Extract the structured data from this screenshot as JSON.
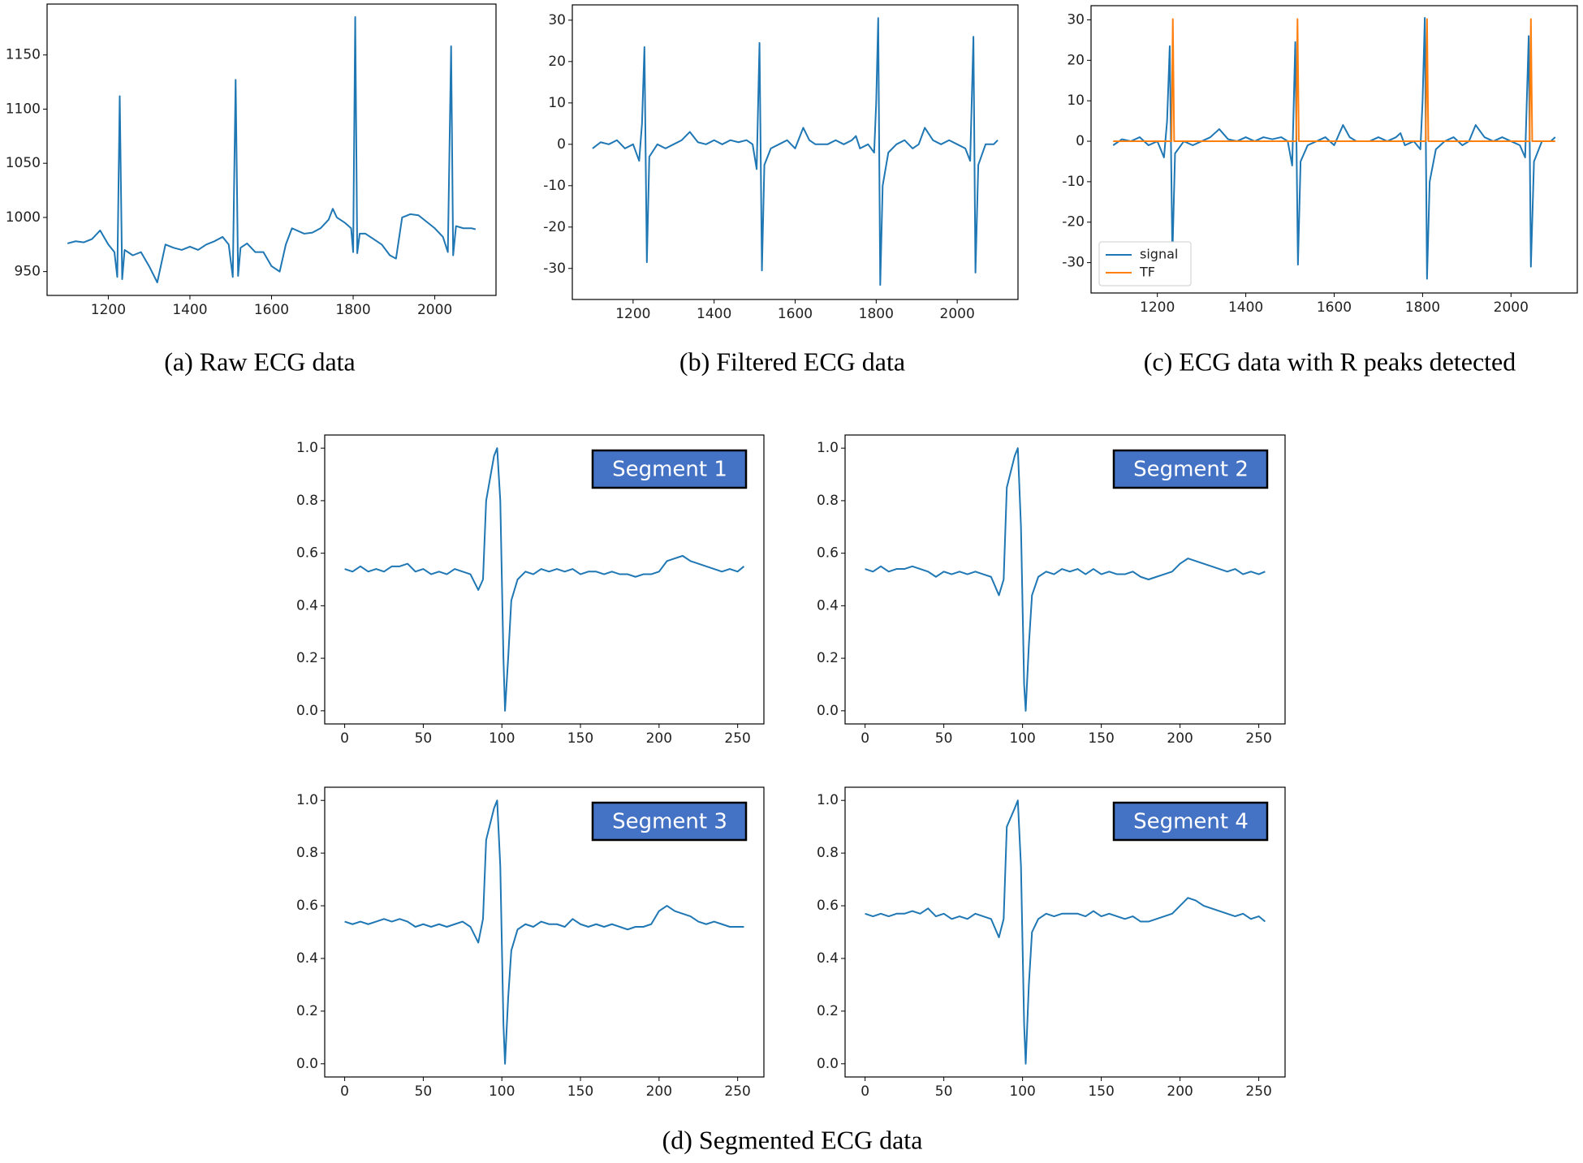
{
  "chart_data": [
    {
      "type": "line",
      "caption": "(a) Raw ECG data",
      "x": [
        1100,
        1120,
        1140,
        1160,
        1180,
        1200,
        1215,
        1222,
        1228,
        1234,
        1240,
        1260,
        1280,
        1300,
        1320,
        1340,
        1360,
        1380,
        1400,
        1420,
        1440,
        1460,
        1480,
        1495,
        1505,
        1512,
        1518,
        1524,
        1540,
        1560,
        1580,
        1600,
        1620,
        1635,
        1650,
        1680,
        1700,
        1720,
        1740,
        1750,
        1760,
        1780,
        1795,
        1800,
        1805,
        1810,
        1816,
        1830,
        1850,
        1870,
        1890,
        1905,
        1920,
        1940,
        1960,
        1980,
        2000,
        2020,
        2032,
        2040,
        2045,
        2052,
        2070,
        2090,
        2100
      ],
      "series": [
        {
          "color": "#1f77b4",
          "values": [
            976,
            978,
            977,
            980,
            988,
            975,
            968,
            945,
            1112,
            943,
            970,
            965,
            968,
            955,
            940,
            975,
            972,
            970,
            973,
            970,
            975,
            978,
            982,
            975,
            945,
            1127,
            946,
            972,
            976,
            968,
            968,
            955,
            950,
            975,
            990,
            985,
            986,
            990,
            998,
            1008,
            1000,
            995,
            990,
            968,
            1185,
            967,
            985,
            985,
            980,
            975,
            965,
            962,
            1000,
            1003,
            1002,
            996,
            990,
            982,
            968,
            1158,
            965,
            992,
            990,
            990,
            989
          ]
        }
      ],
      "xlim": [
        1050,
        2150
      ],
      "ylim": [
        928,
        1197
      ],
      "xticks": [
        1200,
        1400,
        1600,
        1800,
        2000
      ],
      "yticks": [
        950,
        1000,
        1050,
        1100,
        1150
      ]
    },
    {
      "type": "line",
      "caption": "(b) Filtered ECG data",
      "x": [
        1100,
        1120,
        1140,
        1160,
        1180,
        1200,
        1215,
        1222,
        1228,
        1234,
        1240,
        1260,
        1280,
        1300,
        1320,
        1340,
        1360,
        1380,
        1400,
        1420,
        1440,
        1460,
        1480,
        1495,
        1505,
        1512,
        1518,
        1524,
        1540,
        1560,
        1580,
        1600,
        1620,
        1635,
        1650,
        1680,
        1700,
        1720,
        1740,
        1750,
        1760,
        1780,
        1795,
        1800,
        1805,
        1810,
        1816,
        1830,
        1850,
        1870,
        1890,
        1905,
        1920,
        1940,
        1960,
        1980,
        2000,
        2020,
        2032,
        2040,
        2045,
        2052,
        2070,
        2090,
        2100
      ],
      "series": [
        {
          "color": "#1f77b4",
          "values": [
            -1,
            0.5,
            0,
            1,
            -1,
            0,
            -4,
            5,
            23.5,
            -28.5,
            -3,
            0,
            -1,
            0,
            1,
            3,
            0.5,
            0,
            1,
            0,
            1,
            0.5,
            1,
            0,
            -6,
            24.5,
            -30.5,
            -5,
            -1,
            0,
            1,
            -1,
            4,
            1,
            0,
            0,
            1,
            0,
            1,
            2,
            -1,
            0,
            -2,
            10,
            30.5,
            -34,
            -10,
            -2,
            0,
            1,
            -1,
            0,
            4,
            1,
            0,
            1,
            0,
            -1,
            -4,
            26,
            -31,
            -5,
            0,
            0,
            1
          ]
        }
      ],
      "xlim": [
        1050,
        2150
      ],
      "ylim": [
        -37.5,
        33.7
      ],
      "xticks": [
        1200,
        1400,
        1600,
        1800,
        2000
      ],
      "yticks": [
        -30,
        -20,
        -10,
        0,
        10,
        20,
        30
      ]
    },
    {
      "type": "line",
      "caption": "(c) ECG data with R peaks detected",
      "legend": "lower left",
      "series": [
        {
          "name": "signal",
          "color": "#1f77b4",
          "x": [
            1100,
            1120,
            1140,
            1160,
            1180,
            1200,
            1215,
            1222,
            1228,
            1234,
            1240,
            1260,
            1280,
            1300,
            1320,
            1340,
            1360,
            1380,
            1400,
            1420,
            1440,
            1460,
            1480,
            1495,
            1505,
            1512,
            1518,
            1524,
            1540,
            1560,
            1580,
            1600,
            1620,
            1635,
            1650,
            1680,
            1700,
            1720,
            1740,
            1750,
            1760,
            1780,
            1795,
            1800,
            1805,
            1810,
            1816,
            1830,
            1850,
            1870,
            1890,
            1905,
            1920,
            1940,
            1960,
            1980,
            2000,
            2020,
            2032,
            2040,
            2045,
            2052,
            2070,
            2090,
            2100
          ],
          "values": [
            -1,
            0.5,
            0,
            1,
            -1,
            0,
            -4,
            5,
            23.5,
            -28.5,
            -3,
            0,
            -1,
            0,
            1,
            3,
            0.5,
            0,
            1,
            0,
            1,
            0.5,
            1,
            0,
            -6,
            24.5,
            -30.5,
            -5,
            -1,
            0,
            1,
            -1,
            4,
            1,
            0,
            0,
            1,
            0,
            1,
            2,
            -1,
            0,
            -2,
            10,
            30.5,
            -34,
            -10,
            -2,
            0,
            1,
            -1,
            0,
            4,
            1,
            0,
            1,
            0,
            -1,
            -4,
            26,
            -31,
            -5,
            0,
            0,
            1
          ]
        },
        {
          "name": "TF",
          "color": "#ff7f0e",
          "x": [
            1100,
            1232,
            1235,
            1238,
            1514,
            1517,
            1520,
            1807,
            1810,
            1813,
            2042,
            2045,
            2048,
            2100
          ],
          "values": [
            0,
            0,
            30.2,
            0,
            0,
            30.2,
            0,
            0,
            30.2,
            0,
            0,
            30.2,
            0,
            0
          ]
        }
      ],
      "xlim": [
        1050,
        2150
      ],
      "ylim": [
        -37.5,
        33.5
      ],
      "xticks": [
        1200,
        1400,
        1600,
        1800,
        2000
      ],
      "yticks": [
        -30,
        -20,
        -10,
        0,
        10,
        20,
        30
      ]
    },
    {
      "type": "line",
      "annotation": "Segment 1",
      "x": [
        0,
        5,
        10,
        15,
        20,
        25,
        30,
        35,
        40,
        45,
        50,
        55,
        60,
        65,
        70,
        75,
        80,
        85,
        88,
        90,
        95,
        97,
        99,
        101,
        102,
        104,
        106,
        110,
        115,
        120,
        125,
        130,
        135,
        140,
        145,
        150,
        155,
        160,
        165,
        170,
        175,
        180,
        185,
        190,
        195,
        200,
        205,
        210,
        215,
        220,
        225,
        230,
        235,
        240,
        245,
        250,
        254
      ],
      "series": [
        {
          "color": "#1f77b4",
          "values": [
            0.54,
            0.53,
            0.55,
            0.53,
            0.54,
            0.53,
            0.55,
            0.55,
            0.56,
            0.53,
            0.54,
            0.52,
            0.53,
            0.52,
            0.54,
            0.53,
            0.52,
            0.46,
            0.5,
            0.8,
            0.97,
            1.0,
            0.8,
            0.2,
            0.0,
            0.2,
            0.42,
            0.5,
            0.53,
            0.52,
            0.54,
            0.53,
            0.54,
            0.53,
            0.54,
            0.52,
            0.53,
            0.53,
            0.52,
            0.53,
            0.52,
            0.52,
            0.51,
            0.52,
            0.52,
            0.53,
            0.57,
            0.58,
            0.59,
            0.57,
            0.56,
            0.55,
            0.54,
            0.53,
            0.54,
            0.53,
            0.55
          ]
        }
      ],
      "xlim": [
        -12.7,
        266.7
      ],
      "ylim": [
        -0.05,
        1.05
      ],
      "xticks": [
        0,
        50,
        100,
        150,
        200,
        250
      ],
      "yticks": [
        {
          "value": 0,
          "label": "0.0"
        },
        0.2,
        0.4,
        0.6,
        0.8,
        {
          "value": 1,
          "label": "1.0"
        }
      ]
    },
    {
      "type": "line",
      "annotation": "Segment 2",
      "x": [
        0,
        5,
        10,
        15,
        20,
        25,
        30,
        35,
        40,
        45,
        50,
        55,
        60,
        65,
        70,
        75,
        80,
        85,
        88,
        90,
        95,
        97,
        99,
        101,
        102,
        104,
        106,
        110,
        115,
        120,
        125,
        130,
        135,
        140,
        145,
        150,
        155,
        160,
        165,
        170,
        175,
        180,
        185,
        190,
        195,
        200,
        205,
        210,
        215,
        220,
        225,
        230,
        235,
        240,
        245,
        250,
        254
      ],
      "series": [
        {
          "color": "#1f77b4",
          "values": [
            0.54,
            0.53,
            0.55,
            0.53,
            0.54,
            0.54,
            0.55,
            0.54,
            0.53,
            0.51,
            0.53,
            0.52,
            0.53,
            0.52,
            0.53,
            0.52,
            0.51,
            0.44,
            0.5,
            0.85,
            0.97,
            1.0,
            0.7,
            0.1,
            0.0,
            0.25,
            0.44,
            0.51,
            0.53,
            0.52,
            0.54,
            0.53,
            0.54,
            0.52,
            0.54,
            0.52,
            0.53,
            0.52,
            0.52,
            0.53,
            0.51,
            0.5,
            0.51,
            0.52,
            0.53,
            0.56,
            0.58,
            0.57,
            0.56,
            0.55,
            0.54,
            0.53,
            0.54,
            0.52,
            0.53,
            0.52,
            0.53
          ]
        }
      ],
      "xlim": [
        -12.7,
        266.7
      ],
      "ylim": [
        -0.05,
        1.05
      ],
      "xticks": [
        0,
        50,
        100,
        150,
        200,
        250
      ],
      "yticks": [
        {
          "value": 0,
          "label": "0.0"
        },
        0.2,
        0.4,
        0.6,
        0.8,
        {
          "value": 1,
          "label": "1.0"
        }
      ]
    },
    {
      "type": "line",
      "annotation": "Segment 3",
      "x": [
        0,
        5,
        10,
        15,
        20,
        25,
        30,
        35,
        40,
        45,
        50,
        55,
        60,
        65,
        70,
        75,
        80,
        85,
        88,
        90,
        95,
        97,
        99,
        101,
        102,
        104,
        106,
        110,
        115,
        120,
        125,
        130,
        135,
        140,
        145,
        150,
        155,
        160,
        165,
        170,
        175,
        180,
        185,
        190,
        195,
        200,
        205,
        210,
        215,
        220,
        225,
        230,
        235,
        240,
        245,
        250,
        254
      ],
      "series": [
        {
          "color": "#1f77b4",
          "values": [
            0.54,
            0.53,
            0.54,
            0.53,
            0.54,
            0.55,
            0.54,
            0.55,
            0.54,
            0.52,
            0.53,
            0.52,
            0.53,
            0.52,
            0.53,
            0.54,
            0.52,
            0.46,
            0.55,
            0.85,
            0.97,
            1.0,
            0.75,
            0.15,
            0.0,
            0.25,
            0.43,
            0.51,
            0.53,
            0.52,
            0.54,
            0.53,
            0.53,
            0.52,
            0.55,
            0.53,
            0.52,
            0.53,
            0.52,
            0.53,
            0.52,
            0.51,
            0.52,
            0.52,
            0.53,
            0.58,
            0.6,
            0.58,
            0.57,
            0.56,
            0.54,
            0.53,
            0.54,
            0.53,
            0.52,
            0.52,
            0.52
          ]
        }
      ],
      "xlim": [
        -12.7,
        266.7
      ],
      "ylim": [
        -0.05,
        1.05
      ],
      "xticks": [
        0,
        50,
        100,
        150,
        200,
        250
      ],
      "yticks": [
        {
          "value": 0,
          "label": "0.0"
        },
        0.2,
        0.4,
        0.6,
        0.8,
        {
          "value": 1,
          "label": "1.0"
        }
      ]
    },
    {
      "type": "line",
      "annotation": "Segment 4",
      "x": [
        0,
        5,
        10,
        15,
        20,
        25,
        30,
        35,
        40,
        45,
        50,
        55,
        60,
        65,
        70,
        75,
        80,
        85,
        88,
        90,
        95,
        97,
        99,
        101,
        102,
        104,
        106,
        110,
        115,
        120,
        125,
        130,
        135,
        140,
        145,
        150,
        155,
        160,
        165,
        170,
        175,
        180,
        185,
        190,
        195,
        200,
        205,
        210,
        215,
        220,
        225,
        230,
        235,
        240,
        245,
        250,
        254
      ],
      "series": [
        {
          "color": "#1f77b4",
          "values": [
            0.57,
            0.56,
            0.57,
            0.56,
            0.57,
            0.57,
            0.58,
            0.57,
            0.59,
            0.56,
            0.57,
            0.55,
            0.56,
            0.55,
            0.57,
            0.56,
            0.55,
            0.48,
            0.55,
            0.9,
            0.97,
            1.0,
            0.75,
            0.15,
            0.0,
            0.3,
            0.5,
            0.55,
            0.57,
            0.56,
            0.57,
            0.57,
            0.57,
            0.56,
            0.58,
            0.56,
            0.57,
            0.56,
            0.55,
            0.56,
            0.54,
            0.54,
            0.55,
            0.56,
            0.57,
            0.6,
            0.63,
            0.62,
            0.6,
            0.59,
            0.58,
            0.57,
            0.56,
            0.57,
            0.55,
            0.56,
            0.54
          ]
        }
      ],
      "xlim": [
        -12.7,
        266.7
      ],
      "ylim": [
        -0.05,
        1.05
      ],
      "xticks": [
        0,
        50,
        100,
        150,
        200,
        250
      ],
      "yticks": [
        {
          "value": 0,
          "label": "0.0"
        },
        0.2,
        0.4,
        0.6,
        0.8,
        {
          "value": 1,
          "label": "1.0"
        }
      ]
    }
  ],
  "group_caption": "(d) Segmented ECG data"
}
